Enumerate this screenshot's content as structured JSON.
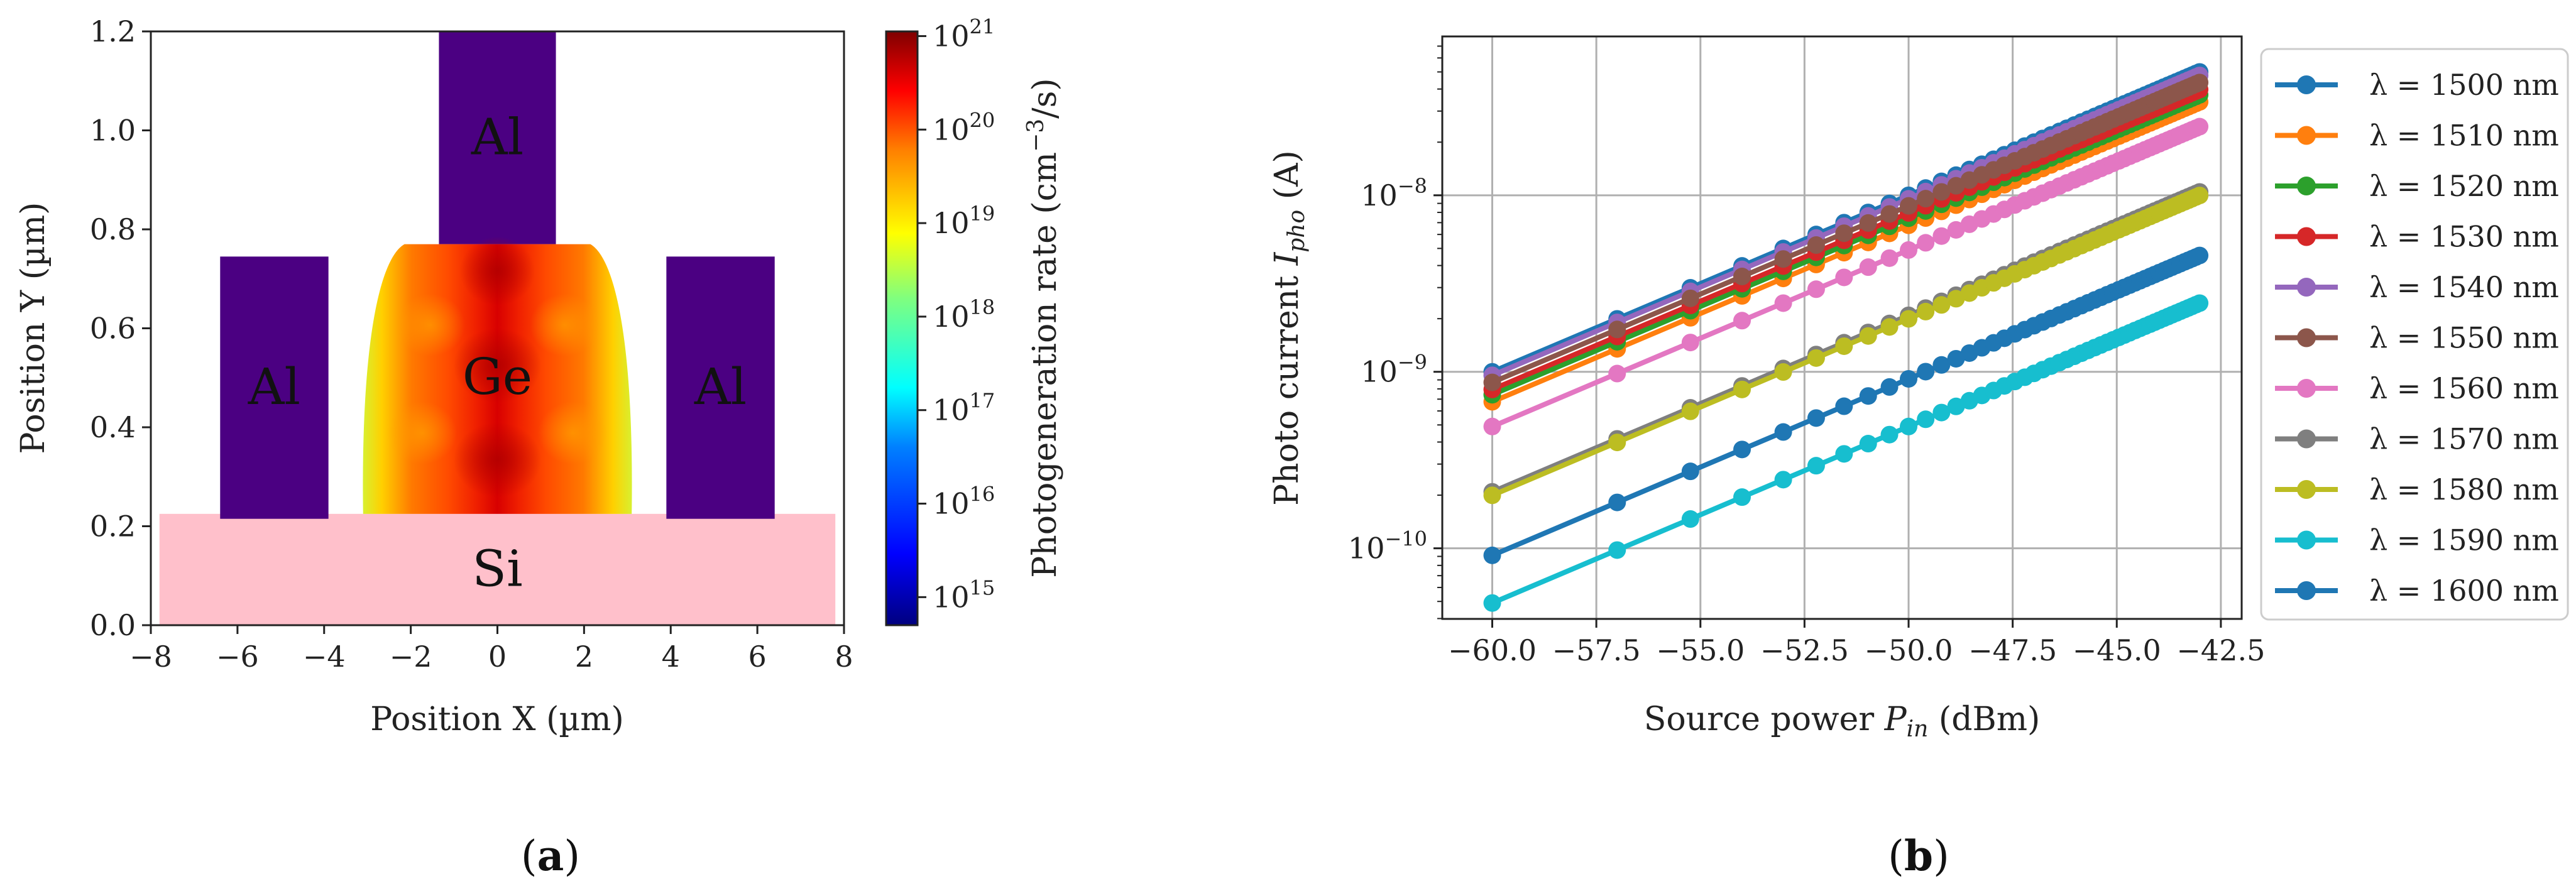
{
  "figure": {
    "panel_a_label_open": "(",
    "panel_a_label_letter": "a",
    "panel_a_label_close": ")",
    "panel_b_label_open": "(",
    "panel_b_label_letter": "b",
    "panel_b_label_close": ")"
  },
  "colors": {
    "aluminum": "#4b0082",
    "silicon": "#ffc0cb",
    "grid": "#b0b0b0",
    "text": "#222222"
  },
  "chart_data": [
    {
      "type": "heatmap",
      "title": "",
      "xlabel": "Position X (µm)",
      "ylabel": "Position Y (µm)",
      "xlim": [
        -8,
        8
      ],
      "ylim": [
        0,
        1.2
      ],
      "xticks": [
        -8,
        -6,
        -4,
        -2,
        0,
        2,
        4,
        6,
        8
      ],
      "yticks": [
        0.0,
        0.2,
        0.4,
        0.6,
        0.8,
        1.0,
        1.2
      ],
      "xtick_labels": [
        "−8",
        "−6",
        "−4",
        "−2",
        "0",
        "2",
        "4",
        "6",
        "8"
      ],
      "ytick_labels": [
        "0.0",
        "0.2",
        "0.4",
        "0.6",
        "0.8",
        "1.0",
        "1.2"
      ],
      "regions": [
        {
          "name": "Si",
          "x": [
            -7.8,
            7.8
          ],
          "y": [
            0,
            0.225
          ]
        },
        {
          "name": "Al",
          "x": [
            -6.4,
            -3.9
          ],
          "y": [
            0.215,
            0.745
          ]
        },
        {
          "name": "Al",
          "x": [
            3.9,
            6.4
          ],
          "y": [
            0.215,
            0.745
          ]
        },
        {
          "name": "Al",
          "x": [
            -1.35,
            1.35
          ],
          "y": [
            0.77,
            1.2
          ]
        },
        {
          "name": "Ge",
          "x": [
            -3.1,
            3.1
          ],
          "y": [
            0.225,
            0.77
          ]
        }
      ],
      "colorbar": {
        "label": "Photogeneration rate (cm⁻³/s)",
        "label_main": "Photogeneration rate (cm",
        "label_exp": "−3",
        "label_tail": "/s)",
        "min_exponent": 14.7,
        "max_exponent": 21.05,
        "tick_base": "10",
        "tick_exponents": [
          "15",
          "16",
          "17",
          "18",
          "19",
          "20",
          "21"
        ]
      }
    },
    {
      "type": "line",
      "title": "",
      "xlabel_main": "Source power ",
      "xlabel_sym": "P",
      "xlabel_sub": "in",
      "xlabel_tail": " (dBm)",
      "ylabel_main": "Photo current ",
      "ylabel_sym": "I",
      "ylabel_sub": "pho",
      "ylabel_tail": " (A)",
      "yscale": "log",
      "xlim": [
        -61.2,
        -42.0
      ],
      "ylim_exp": [
        -10.4,
        -7.1
      ],
      "xticks": [
        -60.0,
        -57.5,
        -55.0,
        -52.5,
        -50.0,
        -47.5,
        -45.0,
        -42.5
      ],
      "xtick_labels": [
        "−60.0",
        "−57.5",
        "−55.0",
        "−52.5",
        "−50.0",
        "−47.5",
        "−45.0",
        "−42.5"
      ],
      "ytick_base": "10",
      "ytick_exponents": [
        "−10",
        "−9",
        "−8"
      ],
      "ytick_values": [
        -10,
        -9,
        -8
      ],
      "x": [
        -60,
        -57,
        -55.24,
        -54,
        -53.01,
        -52.22,
        -51.55,
        -50.97,
        -50.46,
        -50,
        -49.59,
        -49.21,
        -48.86,
        -48.54,
        -48.24,
        -47.96,
        -47.7,
        -47.45,
        -47.21,
        -46.99,
        -46.78,
        -46.58,
        -46.38,
        -46.2,
        -46.02,
        -45.85,
        -45.69,
        -45.53,
        -45.38,
        -45.23,
        -45.09,
        -44.95,
        -44.82,
        -44.69,
        -44.56,
        -44.44,
        -44.32,
        -44.2,
        -44.09,
        -43.98,
        -43.87,
        -43.77,
        -43.67,
        -43.57,
        -43.47,
        -43.37,
        -43.28,
        -43.19,
        -43.1,
        -43.01
      ],
      "legend_position": "right",
      "series": [
        {
          "name": "λ = 1500 nm",
          "nm": "1500",
          "color": "#1f77b4",
          "log10_at_minus60": -9.0
        },
        {
          "name": "λ = 1510 nm",
          "nm": "1510",
          "color": "#ff7f0e",
          "log10_at_minus60": -9.17
        },
        {
          "name": "λ = 1520 nm",
          "nm": "1520",
          "color": "#2ca02c",
          "log10_at_minus60": -9.13
        },
        {
          "name": "λ = 1530 nm",
          "nm": "1530",
          "color": "#d62728",
          "log10_at_minus60": -9.1
        },
        {
          "name": "λ = 1540 nm",
          "nm": "1540",
          "color": "#9467bd",
          "log10_at_minus60": -9.02
        },
        {
          "name": "λ = 1550 nm",
          "nm": "1550",
          "color": "#8c564b",
          "log10_at_minus60": -9.06
        },
        {
          "name": "λ = 1560 nm",
          "nm": "1560",
          "color": "#e377c2",
          "log10_at_minus60": -9.31
        },
        {
          "name": "λ = 1570 nm",
          "nm": "1570",
          "color": "#7f7f7f",
          "log10_at_minus60": -9.68
        },
        {
          "name": "λ = 1580 nm",
          "nm": "1580",
          "color": "#bcbd22",
          "log10_at_minus60": -9.7
        },
        {
          "name": "λ = 1590 nm",
          "nm": "1590",
          "color": "#17becf",
          "log10_at_minus60": -10.31
        },
        {
          "name": "λ = 1600 nm",
          "nm": "1600",
          "color": "#1f77b4",
          "log10_at_minus60": -10.04
        }
      ],
      "slope_decades_per_dB": 0.1
    }
  ]
}
